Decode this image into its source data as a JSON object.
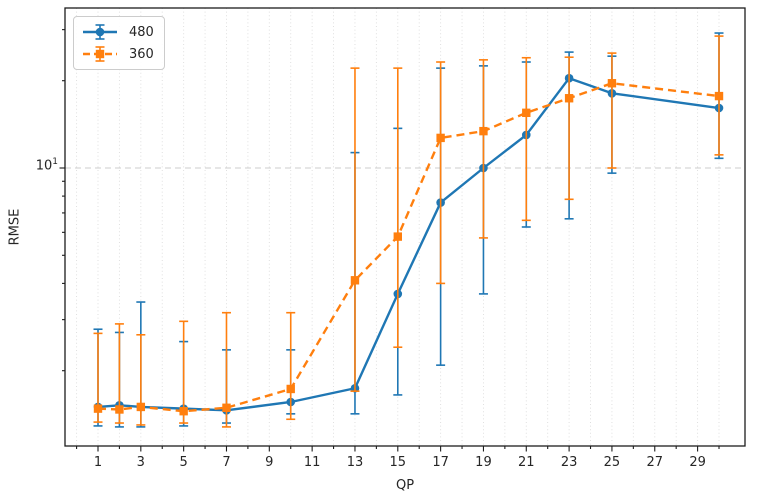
{
  "chart_data": {
    "type": "line",
    "variant": "errorbar",
    "title": "",
    "xlabel": "QP",
    "ylabel": "RMSE",
    "yscale": "log",
    "xlim": [
      -0.54,
      31.21
    ],
    "ylim": [
      1.1,
      35.6
    ],
    "grid": {
      "vertical": "dotted at every integer QP",
      "horizontal": "dashed at 10"
    },
    "xticks_major": [
      1,
      3,
      5,
      7,
      9,
      11,
      13,
      15,
      17,
      19,
      21,
      23,
      25,
      27,
      29
    ],
    "xticks_minor": [
      0,
      2,
      4,
      6,
      8,
      10,
      12,
      14,
      16,
      18,
      20,
      22,
      24,
      26,
      28,
      30
    ],
    "ytick_major": {
      "value": 10,
      "label_base": "10",
      "label_exp": "1"
    },
    "yticks_minor": [
      2,
      3,
      4,
      5,
      6,
      7,
      8,
      9,
      20,
      30
    ],
    "legend_position": "upper left",
    "x": [
      1,
      2,
      3,
      5,
      7,
      10,
      13,
      15,
      17,
      19,
      21,
      23,
      25,
      30
    ],
    "series": [
      {
        "name": "480",
        "color": "#1f77b4",
        "marker": "circle",
        "linestyle": "solid",
        "values": [
          1.5,
          1.52,
          1.5,
          1.48,
          1.46,
          1.56,
          1.74,
          3.68,
          7.6,
          10.0,
          13.0,
          20.4,
          18.1,
          16.1
        ],
        "err_low": [
          1.29,
          1.28,
          1.28,
          1.29,
          1.32,
          1.42,
          1.42,
          1.65,
          2.09,
          3.68,
          6.26,
          6.68,
          9.6,
          10.8
        ],
        "err_high": [
          2.78,
          2.71,
          3.45,
          2.52,
          2.36,
          2.36,
          11.3,
          13.7,
          22.1,
          22.5,
          23.2,
          25.1,
          24.3,
          29.2
        ]
      },
      {
        "name": "360",
        "color": "#ff7f0e",
        "marker": "square",
        "linestyle": "dashed",
        "values": [
          1.48,
          1.47,
          1.5,
          1.45,
          1.49,
          1.73,
          4.1,
          5.8,
          12.7,
          13.4,
          15.5,
          17.4,
          19.6,
          17.7
        ],
        "err_low": [
          1.33,
          1.32,
          1.3,
          1.32,
          1.28,
          1.36,
          1.7,
          2.41,
          4.0,
          5.74,
          6.6,
          7.8,
          10.0,
          11.1
        ],
        "err_high": [
          2.69,
          2.9,
          2.66,
          2.96,
          3.17,
          3.17,
          22.1,
          22.1,
          23.2,
          23.6,
          24.0,
          24.1,
          24.9,
          28.5
        ]
      }
    ],
    "colors": {
      "series_480": "#1f77b4",
      "series_360": "#ff7f0e",
      "grid_vertical": "#dcdcdc",
      "grid_horizontal": "#cccccc",
      "spine": "#1c1c1c",
      "text": "#262626"
    }
  }
}
